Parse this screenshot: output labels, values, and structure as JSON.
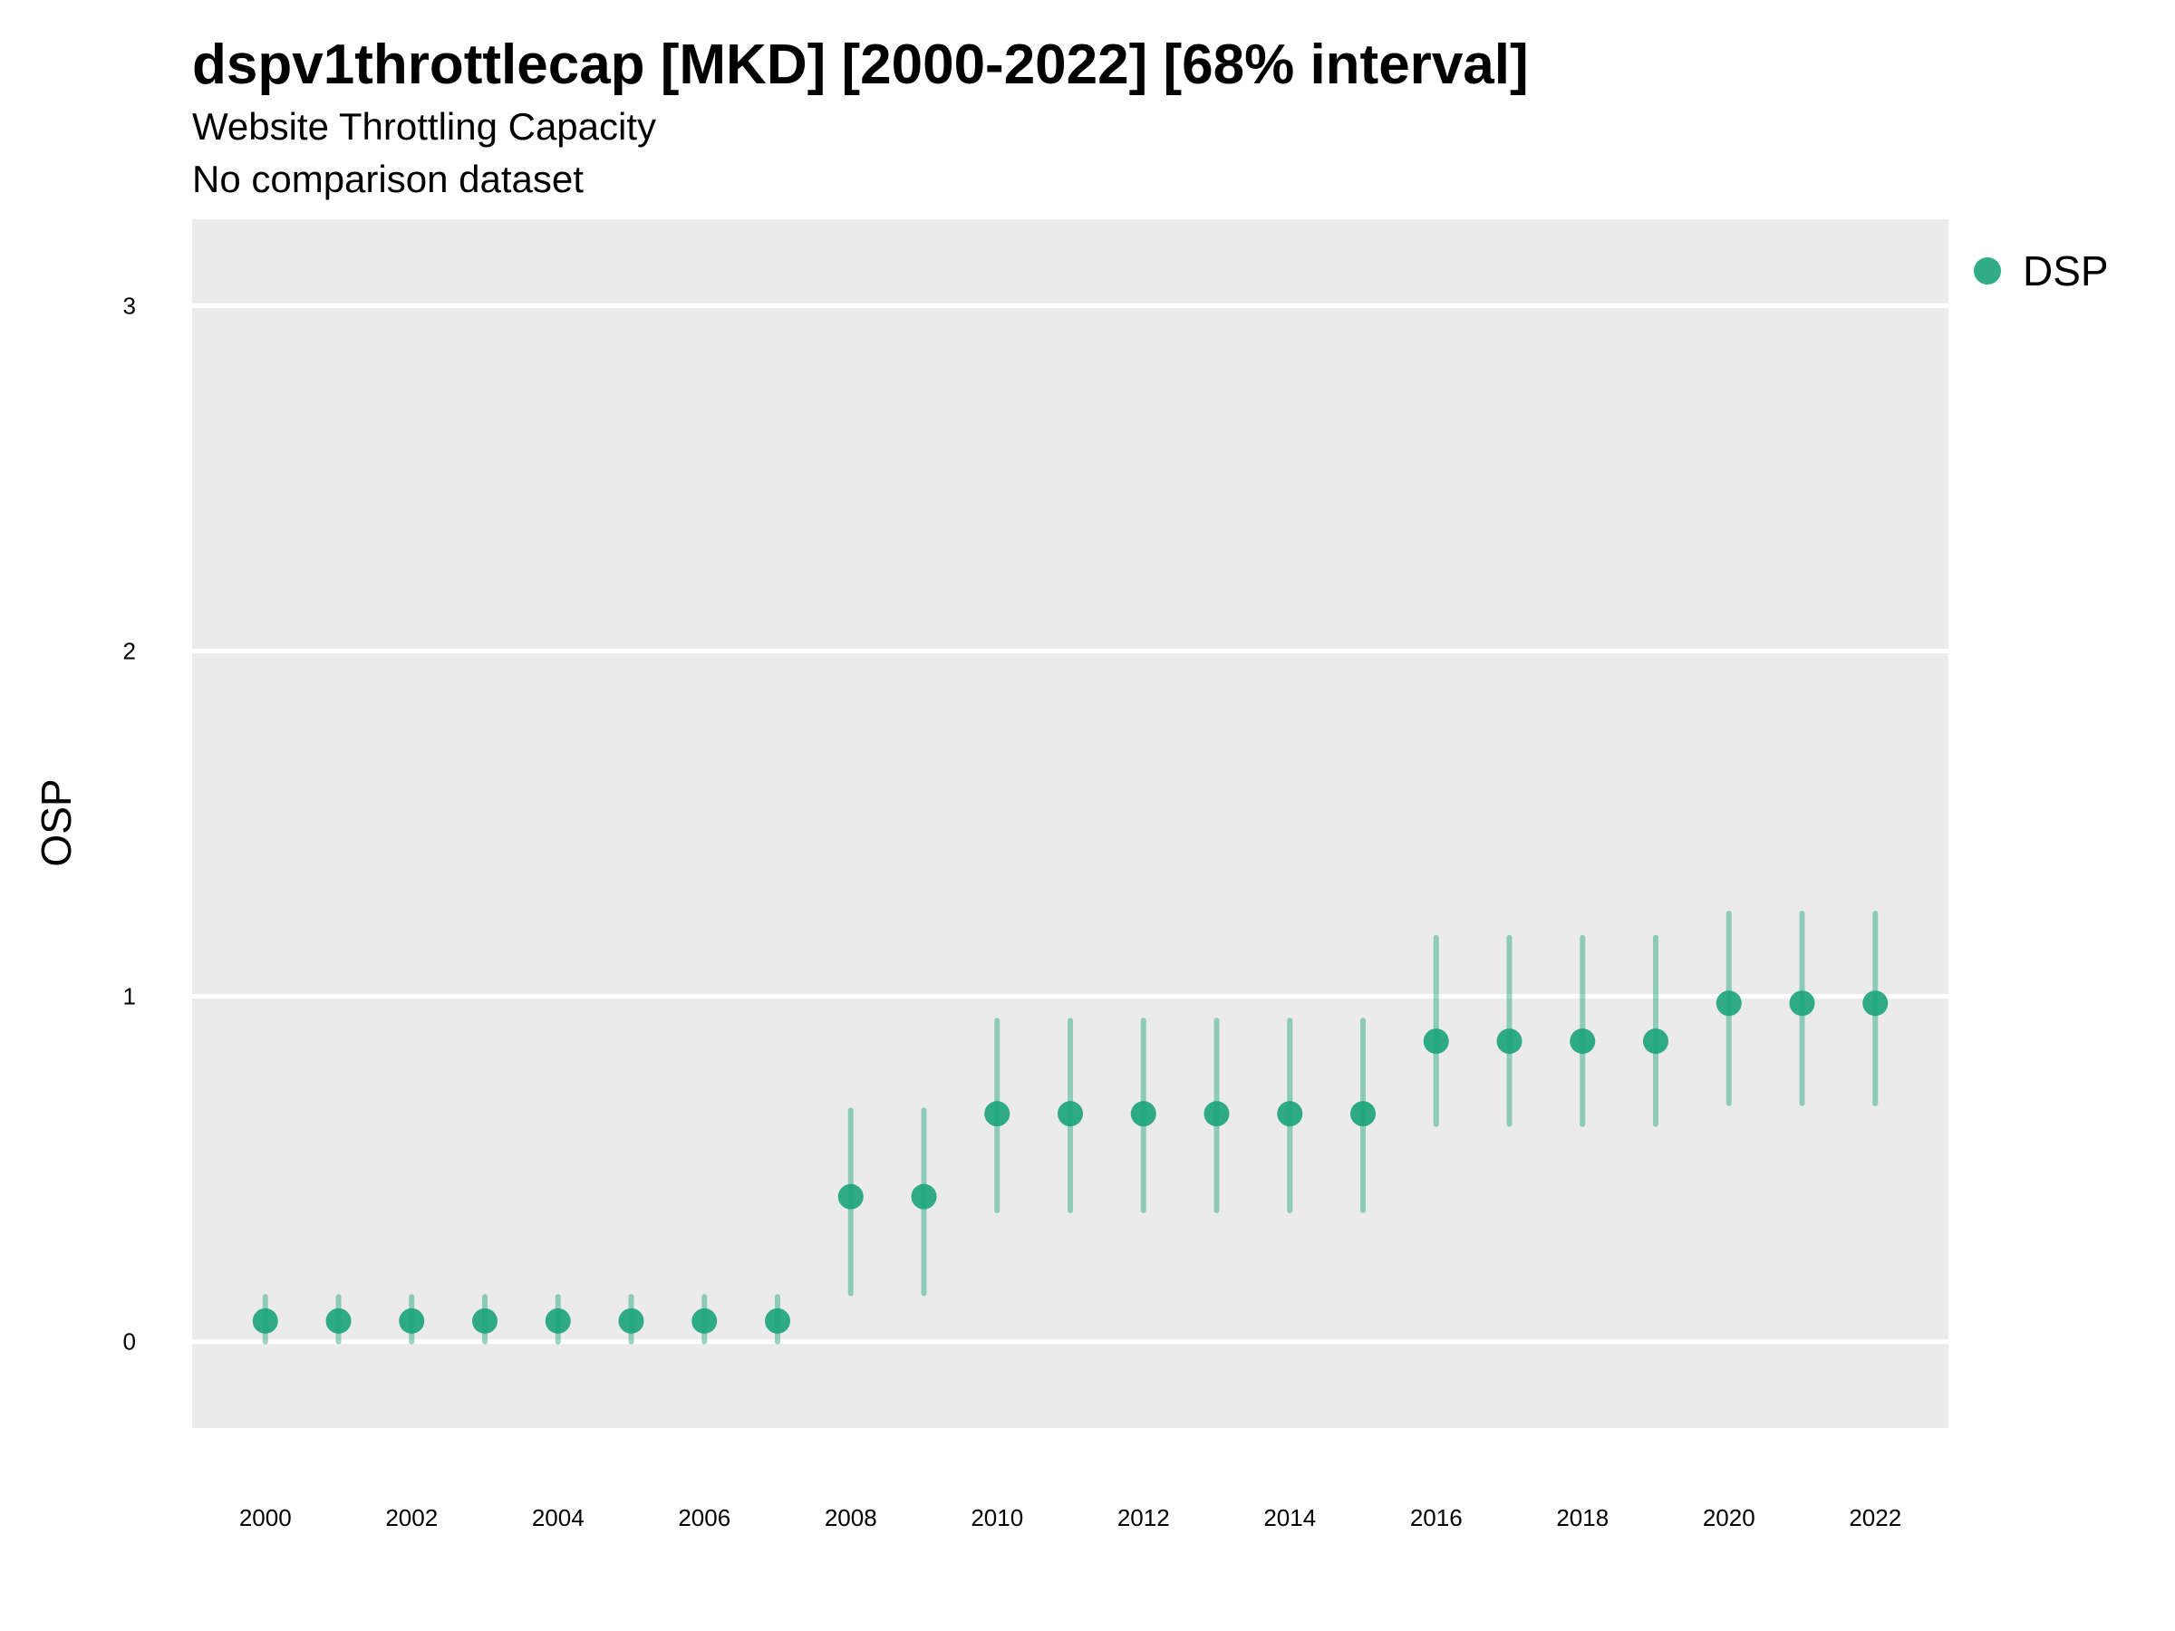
{
  "chart_data": {
    "type": "scatter",
    "title": "dspv1throttlecap [MKD] [2000-2022] [68% interval]",
    "subtitle": [
      "Website Throttling Capacity",
      "No comparison dataset"
    ],
    "xlabel": "",
    "ylabel": "OSP",
    "x_ticks": [
      2000,
      2002,
      2004,
      2006,
      2008,
      2010,
      2012,
      2014,
      2016,
      2018,
      2020,
      2022
    ],
    "y_ticks": [
      0,
      1,
      2,
      3
    ],
    "xlim": [
      1999,
      2023
    ],
    "ylim": [
      -0.25,
      3.25
    ],
    "grid": true,
    "legend_position": "top-right",
    "series": [
      {
        "name": "DSP",
        "color": "#1aa37a",
        "x": [
          2000,
          2001,
          2002,
          2003,
          2004,
          2005,
          2006,
          2007,
          2008,
          2009,
          2010,
          2011,
          2012,
          2013,
          2014,
          2015,
          2016,
          2017,
          2018,
          2019,
          2020,
          2021,
          2022
        ],
        "y": [
          0.06,
          0.06,
          0.06,
          0.06,
          0.06,
          0.06,
          0.06,
          0.06,
          0.42,
          0.42,
          0.66,
          0.66,
          0.66,
          0.66,
          0.66,
          0.66,
          0.87,
          0.87,
          0.87,
          0.87,
          0.98,
          0.98,
          0.98
        ],
        "lower": [
          0.0,
          0.0,
          0.0,
          0.0,
          0.0,
          0.0,
          0.0,
          0.0,
          0.14,
          0.14,
          0.38,
          0.38,
          0.38,
          0.38,
          0.38,
          0.38,
          0.63,
          0.63,
          0.63,
          0.63,
          0.69,
          0.69,
          0.69
        ],
        "upper": [
          0.13,
          0.13,
          0.13,
          0.13,
          0.13,
          0.13,
          0.13,
          0.13,
          0.67,
          0.67,
          0.93,
          0.93,
          0.93,
          0.93,
          0.93,
          0.93,
          1.17,
          1.17,
          1.17,
          1.17,
          1.24,
          1.24,
          1.24
        ]
      }
    ]
  }
}
